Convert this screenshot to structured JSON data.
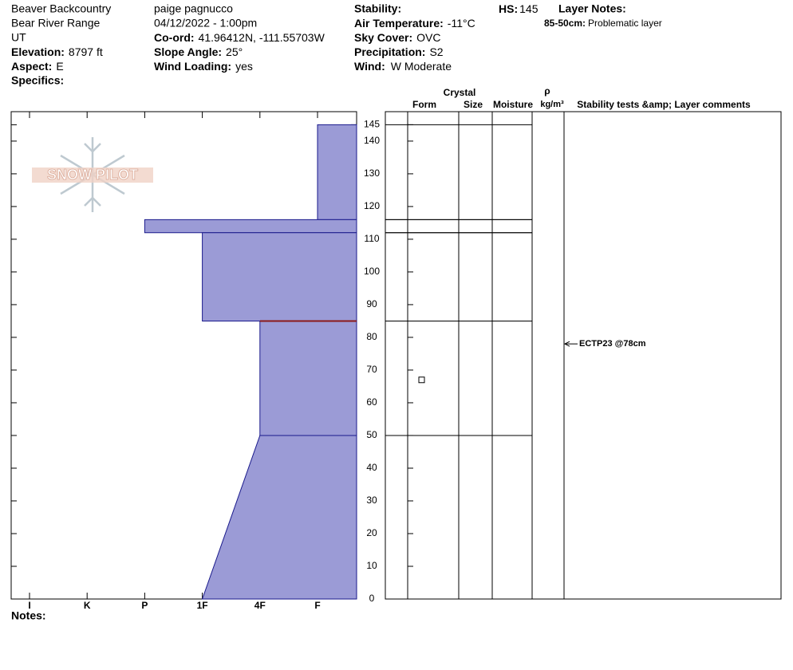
{
  "header": {
    "col1": [
      "Beaver Backcountry",
      "Bear River Range",
      "UT"
    ],
    "elevation": {
      "label": "Elevation:",
      "value": "8797 ft"
    },
    "aspect": {
      "label": "Aspect:",
      "value": "E"
    },
    "specifics": {
      "label": "Specifics:"
    },
    "observer": "paige pagnucco",
    "datetime": "04/12/2022 - 1:00pm",
    "coord": {
      "label": "Co-ord:",
      "value": "41.96412N, -111.55703W"
    },
    "slope": {
      "label": "Slope Angle:",
      "value": "25°"
    },
    "wind_loading": {
      "label": "Wind Loading:",
      "value": "yes"
    },
    "stability": {
      "label": "Stability:"
    },
    "air_temp": {
      "label": "Air Temperature:",
      "value": "-11°C"
    },
    "sky": {
      "label": "Sky Cover:",
      "value": "OVC"
    },
    "precip": {
      "label": "Precipitation:",
      "value": "S2"
    },
    "wind": {
      "label": "Wind:",
      "value": "W Moderate"
    },
    "hs": {
      "label": "HS:",
      "value": "145"
    },
    "layer_notes": {
      "label": "Layer Notes:",
      "notes": [
        {
          "range": "85-50cm:",
          "text": "Problematic layer"
        }
      ]
    }
  },
  "logo": "SNOW PILOT",
  "footer": {
    "notes": "Notes:"
  },
  "chart_data": {
    "type": "snow-profile",
    "x_categories": [
      "I",
      "K",
      "P",
      "1F",
      "4F",
      "F"
    ],
    "ylim": [
      0,
      149
    ],
    "yticks": [
      0,
      10,
      20,
      30,
      40,
      50,
      60,
      70,
      80,
      90,
      100,
      110,
      120,
      130,
      140,
      145
    ],
    "color": "#9b9bd6",
    "layers": [
      {
        "top": 145,
        "bottom": 116,
        "hardness_top": "F",
        "hardness_bottom": "F"
      },
      {
        "top": 116,
        "bottom": 112,
        "hardness_top": "P",
        "hardness_bottom": "P"
      },
      {
        "top": 112,
        "bottom": 85,
        "hardness_top": "1F",
        "hardness_bottom": "1F"
      },
      {
        "top": 85,
        "bottom": 50,
        "hardness_top": "4F",
        "hardness_bottom": "4F"
      },
      {
        "top": 50,
        "bottom": 0,
        "hardness_top": "4F",
        "hardness_bottom": "1F"
      }
    ],
    "problem_layer": {
      "top": 85,
      "bottom": 50,
      "color": "#8b1a1a"
    },
    "grains": [
      {
        "depth": 67
      }
    ],
    "tests": [
      {
        "depth": 78,
        "label": "ECTP23 @78cm"
      }
    ],
    "table_headers": {
      "crystal": "Crystal",
      "form": "Form",
      "size": "Size",
      "moisture": "Moisture",
      "rho": "ρ",
      "density_unit": "kg/m³",
      "comments": "Stability tests &amp; Layer comments"
    }
  }
}
